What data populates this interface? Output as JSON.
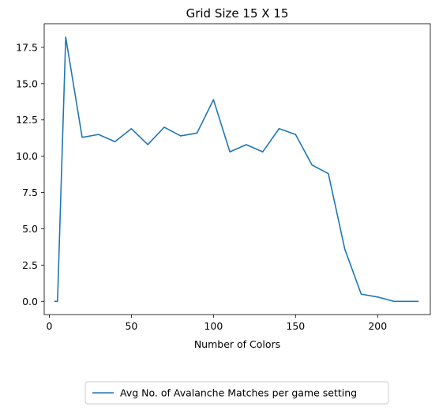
{
  "chart_data": {
    "type": "line",
    "title": "Grid Size 15 X 15",
    "xlabel": "Number of Colors",
    "ylabel": "",
    "xlim": [
      -3.1,
      232.1
    ],
    "ylim": [
      -0.91,
      19.13
    ],
    "xticks": [
      0,
      50,
      100,
      150,
      200
    ],
    "xtick_labels": [
      "0",
      "50",
      "100",
      "150",
      "200"
    ],
    "yticks": [
      0,
      2.5,
      5,
      7.5,
      10,
      12.5,
      15,
      17.5
    ],
    "ytick_labels": [
      "0.0",
      "2.5",
      "5.0",
      "7.5",
      "10.0",
      "12.5",
      "15.0",
      "17.5"
    ],
    "grid": false,
    "legend_position": "below-center",
    "series": [
      {
        "name": "Avg No. of Avalanche Matches per game setting",
        "color": "#1f77b4",
        "x": [
          3,
          5,
          10,
          20,
          30,
          40,
          50,
          60,
          70,
          80,
          90,
          100,
          110,
          120,
          130,
          140,
          150,
          160,
          170,
          180,
          190,
          200,
          210,
          220,
          225
        ],
        "y": [
          0.0,
          0.0,
          18.2,
          11.3,
          11.5,
          11.0,
          11.9,
          10.8,
          12.0,
          11.4,
          11.6,
          13.9,
          10.3,
          10.8,
          10.3,
          11.9,
          11.5,
          9.4,
          8.8,
          3.6,
          0.5,
          0.3,
          0.0,
          0.0,
          0.0
        ]
      }
    ]
  }
}
